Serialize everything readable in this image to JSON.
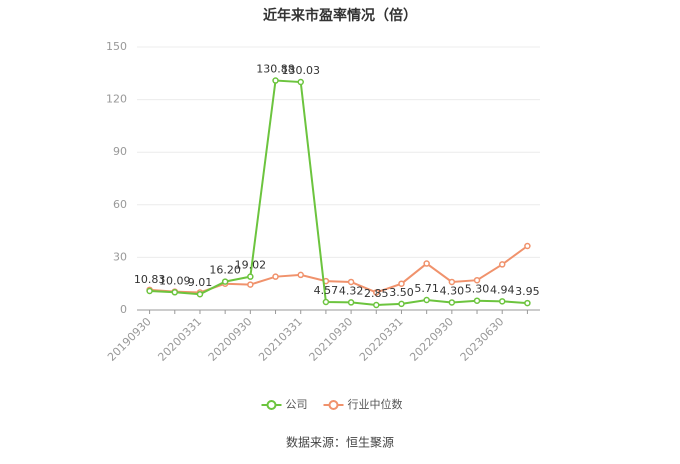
{
  "chart_data": {
    "type": "line",
    "title": "近年来市盈率情况（倍）",
    "source": "数据来源：恒生聚源",
    "categories": [
      "20190930",
      null,
      "20200331",
      null,
      "20200930",
      null,
      "20210331",
      null,
      "20210930",
      null,
      "20220331",
      null,
      "20220930",
      null,
      "20230630",
      null
    ],
    "series": [
      {
        "name": "公司",
        "color": "#6cc43e",
        "values": [
          10.83,
          10.09,
          9.01,
          16.2,
          19.02,
          130.88,
          130.03,
          4.57,
          4.32,
          2.85,
          3.5,
          5.71,
          4.3,
          5.3,
          4.94,
          3.95
        ],
        "value_labels": [
          "10.83",
          "10.09",
          "9.01",
          "16.20",
          "19.02",
          "130.88",
          "130.03",
          "4.57",
          "4.32",
          "2.85",
          "3.50",
          "5.71",
          "4.30",
          "5.30",
          "4.94",
          "3.95"
        ]
      },
      {
        "name": "行业中位数",
        "color": "#f0926c",
        "values": [
          11.5,
          10.5,
          10,
          15,
          14.5,
          19,
          20,
          16.5,
          16,
          10,
          15,
          26.5,
          16,
          17,
          26,
          36.5
        ]
      }
    ],
    "ylim": [
      0,
      150
    ],
    "yticks": [
      0,
      30,
      60,
      90,
      120,
      150
    ],
    "grid": true,
    "legend": "bottom"
  }
}
